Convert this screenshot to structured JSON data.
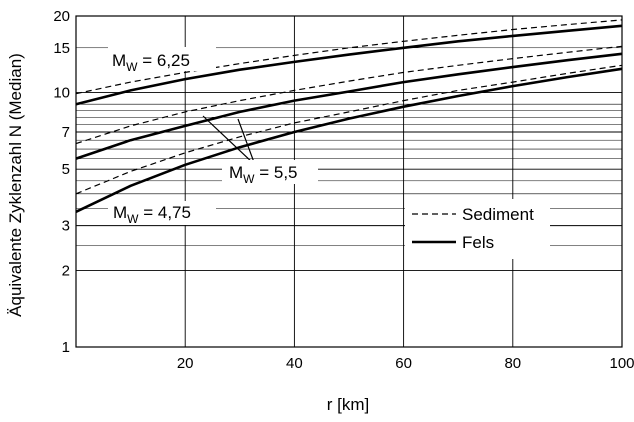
{
  "chart_data": {
    "type": "line",
    "xlabel": "r [km]",
    "ylabel": "Äquivalente Zyklenzahl N (Median)",
    "x_scale": "linear",
    "y_scale": "log",
    "xlim": [
      0,
      100
    ],
    "ylim": [
      1,
      20
    ],
    "x_ticks": [
      20,
      40,
      60,
      80,
      100
    ],
    "y_ticks": [
      1,
      2,
      3,
      5,
      7,
      10,
      15,
      20
    ],
    "grid": true,
    "legend": {
      "position": "right",
      "entries": [
        {
          "label": "Sediment",
          "style": "dashed"
        },
        {
          "label": "Fels",
          "style": "solid"
        }
      ]
    },
    "annotations": [
      {
        "text_main": "M",
        "text_sub": "W",
        "text_value": " = 6,25"
      },
      {
        "text_main": "M",
        "text_sub": "W",
        "text_value": " = 5,5"
      },
      {
        "text_main": "M",
        "text_sub": "W",
        "text_value": " = 4,75"
      }
    ],
    "x": [
      0,
      10,
      20,
      30,
      40,
      50,
      60,
      70,
      80,
      90,
      100
    ],
    "series": [
      {
        "magnitude": "6,25",
        "soil": "Sediment",
        "style": "dashed",
        "values": [
          9.9,
          11.0,
          12.0,
          13.0,
          14.0,
          15.0,
          15.9,
          16.8,
          17.7,
          18.5,
          19.3
        ]
      },
      {
        "magnitude": "6,25",
        "soil": "Fels",
        "style": "solid",
        "values": [
          9.0,
          10.2,
          11.3,
          12.3,
          13.2,
          14.1,
          15.0,
          15.9,
          16.7,
          17.5,
          18.3
        ]
      },
      {
        "magnitude": "5,5",
        "soil": "Sediment",
        "style": "dashed",
        "values": [
          6.3,
          7.4,
          8.4,
          9.3,
          10.2,
          11.1,
          12.0,
          12.8,
          13.6,
          14.4,
          15.2
        ]
      },
      {
        "magnitude": "5,5",
        "soil": "Fels",
        "style": "solid",
        "values": [
          5.5,
          6.5,
          7.4,
          8.4,
          9.3,
          10.1,
          11.0,
          11.8,
          12.6,
          13.4,
          14.2
        ]
      },
      {
        "magnitude": "4,75",
        "soil": "Sediment",
        "style": "dashed",
        "values": [
          4.0,
          4.9,
          5.8,
          6.7,
          7.6,
          8.4,
          9.3,
          10.2,
          11.0,
          11.9,
          12.8
        ]
      },
      {
        "magnitude": "4,75",
        "soil": "Fels",
        "style": "solid",
        "values": [
          3.4,
          4.3,
          5.2,
          6.1,
          7.0,
          7.9,
          8.8,
          9.7,
          10.6,
          11.5,
          12.4
        ]
      }
    ]
  }
}
